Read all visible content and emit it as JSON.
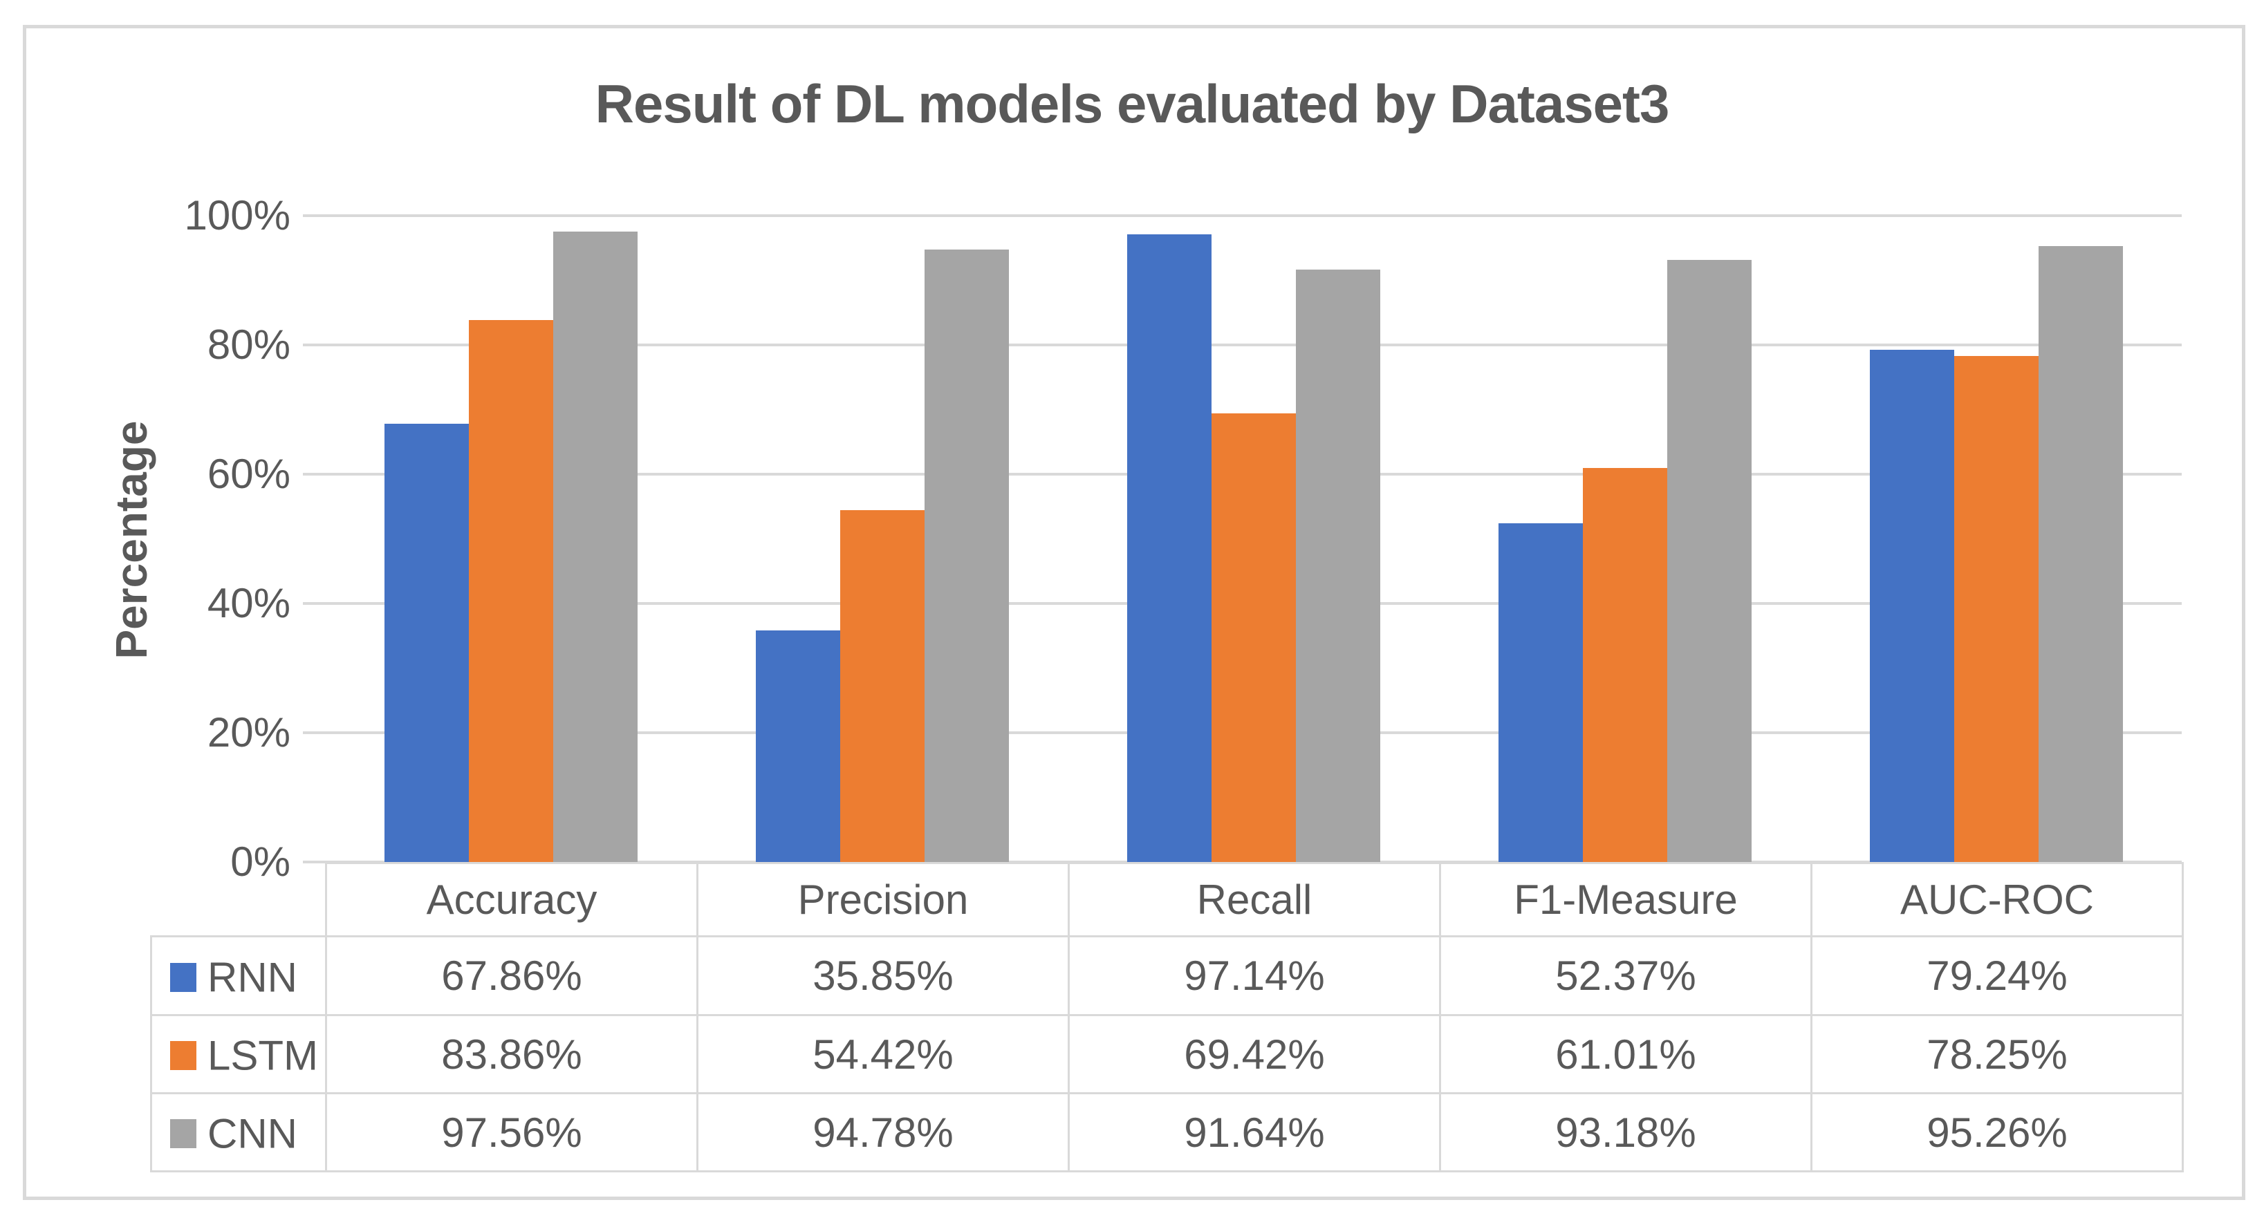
{
  "chart_data": {
    "type": "bar",
    "title": "Result of DL models evaluated by Dataset3",
    "xlabel": "",
    "ylabel": "Percentage",
    "categories": [
      "Accuracy",
      "Precision",
      "Recall",
      "F1-Measure",
      "AUC-ROC"
    ],
    "series": [
      {
        "name": "RNN",
        "color": "#4472C4",
        "values": [
          "67.86%",
          "35.85%",
          "97.14%",
          "52.37%",
          "79.24%"
        ]
      },
      {
        "name": "LSTM",
        "color": "#ED7D31",
        "values": [
          "83.86%",
          "54.42%",
          "69.42%",
          "61.01%",
          "78.25%"
        ]
      },
      {
        "name": "CNN",
        "color": "#A5A5A5",
        "values": [
          "97.56%",
          "94.78%",
          "91.64%",
          "93.18%",
          "95.26%"
        ]
      }
    ],
    "y_axis": {
      "tick_labels": [
        "0%",
        "20%",
        "40%",
        "60%",
        "80%",
        "100%"
      ],
      "min": 0,
      "max": 100,
      "step": 20
    },
    "grid": true,
    "legend_position": "table-rows-left",
    "colors": {
      "text": "#595959",
      "gridline": "#D9D9D9",
      "table_border": "#D9D9D9",
      "background": "#FFFFFF"
    }
  }
}
